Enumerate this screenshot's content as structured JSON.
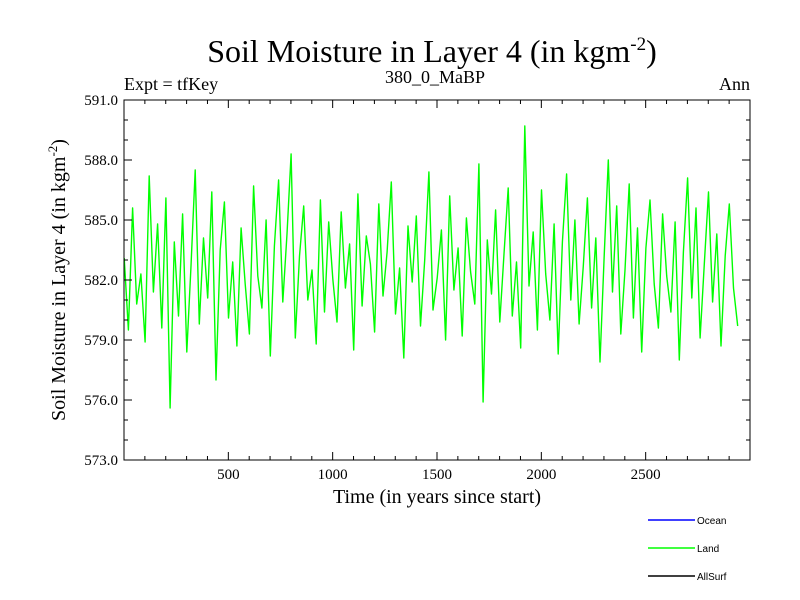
{
  "chart_data": {
    "type": "line",
    "title": "Soil Moisture in Layer 4 (in kgm",
    "title_superscript": "-2",
    "title_suffix": ")",
    "subtitle_left": "Expt = tfKey",
    "subtitle_center": "380_0_MaBP",
    "subtitle_right": "Ann",
    "xlabel": "Time (in years since start)",
    "ylabel": "Soil Moisture in Layer 4 (in kgm",
    "ylabel_superscript": "-2",
    "ylabel_suffix": ")",
    "xlim": [
      0,
      3000
    ],
    "ylim": [
      573.0,
      591.0
    ],
    "x_ticks": [
      500,
      1000,
      1500,
      2000,
      2500
    ],
    "x_tick_labels": [
      "500",
      "1000",
      "1500",
      "2000",
      "2500"
    ],
    "y_ticks": [
      573.0,
      576.0,
      579.0,
      582.0,
      585.0,
      588.0,
      591.0
    ],
    "y_tick_labels": [
      "573.0",
      "576.0",
      "579.0",
      "582.0",
      "585.0",
      "588.0",
      "591.0"
    ],
    "grid": false,
    "legend_position": "bottom-right, below plot",
    "legend": [
      {
        "label": "Ocean",
        "color": "#0000ff"
      },
      {
        "label": "Land",
        "color": "#00ff00"
      },
      {
        "label": "AllSurf",
        "color": "#000000"
      }
    ],
    "series": [
      {
        "name": "Land",
        "color": "#00ff00",
        "x_start": 1,
        "x_step": 20,
        "values": [
          583.1,
          579.5,
          585.6,
          580.8,
          582.3,
          578.9,
          587.2,
          581.4,
          584.8,
          579.6,
          586.1,
          575.6,
          583.9,
          580.2,
          585.3,
          578.4,
          582.7,
          587.5,
          579.8,
          584.1,
          581.1,
          586.4,
          577.0,
          583.5,
          585.9,
          580.1,
          582.9,
          578.7,
          584.6,
          581.8,
          579.3,
          586.7,
          582.2,
          580.6,
          585.0,
          578.2,
          583.7,
          587.0,
          580.9,
          584.3,
          588.3,
          579.1,
          583.2,
          585.7,
          581.0,
          582.5,
          578.8,
          586.0,
          580.4,
          584.9,
          582.0,
          579.9,
          585.4,
          581.6,
          583.8,
          578.5,
          586.3,
          580.7,
          584.2,
          582.8,
          579.4,
          585.8,
          581.2,
          583.4,
          586.9,
          580.3,
          582.6,
          578.1,
          584.7,
          581.9,
          585.2,
          579.7,
          583.0,
          587.4,
          580.5,
          582.1,
          584.5,
          579.0,
          586.2,
          581.5,
          583.6,
          579.2,
          585.1,
          582.4,
          580.8,
          587.8,
          575.9,
          584.0,
          581.3,
          585.5,
          579.9,
          583.3,
          586.6,
          580.2,
          582.9,
          578.6,
          589.7,
          581.7,
          584.4,
          579.5,
          586.5,
          582.3,
          580.0,
          584.8,
          578.3,
          583.9,
          587.3,
          581.0,
          585.0,
          579.8,
          582.7,
          586.1,
          580.6,
          584.1,
          577.9,
          583.1,
          588.0,
          581.4,
          585.7,
          579.3,
          582.5,
          586.8,
          580.1,
          584.6,
          578.4,
          583.6,
          586.0,
          581.8,
          579.6,
          585.3,
          582.2,
          580.4,
          584.9,
          578.0,
          583.4,
          587.1,
          581.1,
          585.6,
          579.1,
          582.8,
          586.4,
          580.9,
          584.3,
          578.7,
          583.2,
          585.8,
          581.6,
          579.7
        ]
      }
    ],
    "annotations": []
  }
}
